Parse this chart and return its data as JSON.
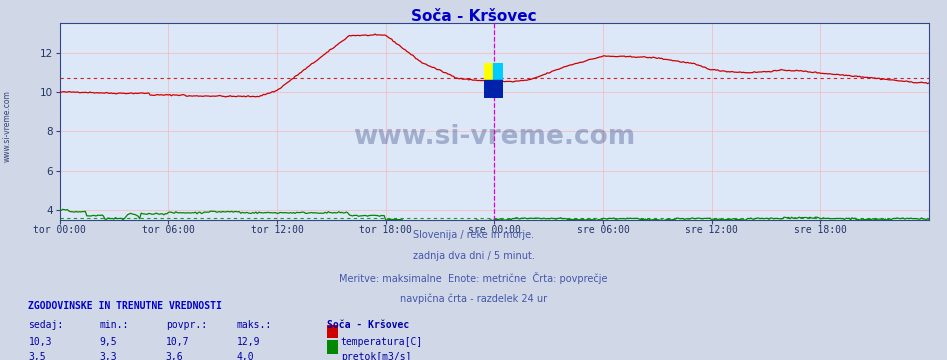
{
  "title": "Soča - Kršovec",
  "title_color": "#0000cc",
  "bg_color": "#d0d8e8",
  "plot_bg_color": "#dce8f8",
  "grid_color": "#ffaaaa",
  "ylim": [
    3.5,
    13.5
  ],
  "yticks": [
    4,
    6,
    8,
    10,
    12
  ],
  "n_points": 577,
  "avg_temp": 10.7,
  "avg_flow": 3.6,
  "temp_color": "#cc0000",
  "flow_color": "#008800",
  "xtick_labels": [
    "tor 00:00",
    "tor 06:00",
    "tor 12:00",
    "tor 18:00",
    "sre 00:00",
    "sre 06:00",
    "sre 12:00",
    "sre 18:00"
  ],
  "xtick_positions": [
    0,
    72,
    144,
    216,
    288,
    360,
    432,
    504
  ],
  "vline_pos": 288,
  "vline_color": "#dd00dd",
  "watermark": "www.si-vreme.com",
  "subtitle_lines": [
    "Slovenija / reke in morje.",
    "zadnja dva dni / 5 minut.",
    "Meritve: maksimalne  Enote: metrične  Črta: povprečje",
    "navpična črta - razdelek 24 ur"
  ],
  "subtitle_color": "#4455aa",
  "legend_title": "ZGODOVINSKE IN TRENUTNE VREDNOSTI",
  "legend_title_color": "#0000cc",
  "legend_headers": [
    "sedaj:",
    "min.:",
    "povpr.:",
    "maks.:"
  ],
  "legend_col_color": "#0000aa",
  "station_name": "Soča - Kršovec",
  "temp_stats": [
    "10,3",
    "9,5",
    "10,7",
    "12,9"
  ],
  "flow_stats": [
    "3,5",
    "3,3",
    "3,6",
    "4,0"
  ],
  "temp_label": "temperatura[C]",
  "flow_label": "pretok[m3/s]",
  "left_label": "www.si-vreme.com"
}
